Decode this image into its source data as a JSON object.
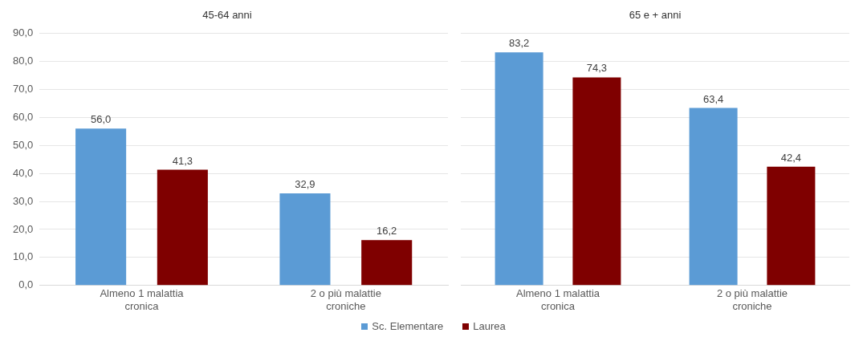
{
  "chart_data": [
    {
      "type": "bar",
      "title": "45-64 anni",
      "categories": [
        "Almeno 1 malattia cronica",
        "2 o più malattie croniche"
      ],
      "series": [
        {
          "name": "Sc. Elementare",
          "color": "#5b9bd5",
          "values": [
            56.0,
            32.9
          ],
          "value_labels": [
            "56,0",
            "32,9"
          ]
        },
        {
          "name": "Laurea",
          "color": "#7f0000",
          "values": [
            41.3,
            16.2
          ],
          "value_labels": [
            "41,3",
            "16,2"
          ]
        }
      ],
      "ylim": [
        0,
        90
      ],
      "yticks": [
        {
          "value": 0,
          "label": "0,0"
        },
        {
          "value": 10,
          "label": "10,0"
        },
        {
          "value": 20,
          "label": "20,0"
        },
        {
          "value": 30,
          "label": "30,0"
        },
        {
          "value": 40,
          "label": "40,0"
        },
        {
          "value": 50,
          "label": "50,0"
        },
        {
          "value": 60,
          "label": "60,0"
        },
        {
          "value": 70,
          "label": "70,0"
        },
        {
          "value": 80,
          "label": "80,0"
        },
        {
          "value": 90,
          "label": "90,0"
        }
      ],
      "grid": "y",
      "legend": "bottom"
    },
    {
      "type": "bar",
      "title": "65 e + anni",
      "categories": [
        "Almeno 1 malattia cronica",
        "2 o più malattie croniche"
      ],
      "series": [
        {
          "color": "#5b9bd5",
          "values": [
            83.2,
            63.4
          ],
          "value_labels": [
            "83,2",
            "63,4"
          ]
        },
        {
          "color": "#7f0000",
          "values": [
            74.3,
            42.4
          ],
          "value_labels": [
            "74,3",
            "42,4"
          ]
        }
      ],
      "ylim": [
        0,
        90
      ],
      "yticks": [
        0,
        10,
        20,
        30,
        40,
        50,
        60,
        70,
        80,
        90
      ],
      "grid": "y",
      "tick_labels": "x"
    }
  ]
}
